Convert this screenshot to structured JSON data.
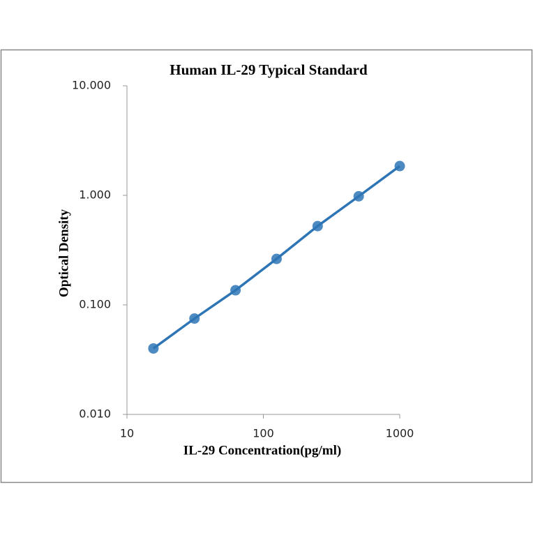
{
  "chart_data": {
    "type": "scatter",
    "title": "Human IL-29 Typical Standard",
    "x_label": "IL-29 Concentration(pg/ml)",
    "y_label": "Optical Density",
    "x": [
      15.625,
      31.25,
      62.5,
      125,
      250,
      500,
      1000
    ],
    "series": [
      {
        "values": [
          0.04,
          0.075,
          0.136,
          0.263,
          0.524,
          0.98,
          1.85
        ],
        "color": "#2e75b6"
      }
    ],
    "xlim": [
      10,
      1000
    ],
    "ylim": [
      0.01,
      10
    ],
    "xticks": [
      10,
      100,
      1000
    ],
    "yticks": [
      {
        "value": 10,
        "label": "10.000"
      },
      {
        "value": 1,
        "label": "1.000"
      },
      {
        "value": 0.1,
        "label": "0.100"
      },
      {
        "value": 0.01,
        "label": "0.010"
      }
    ],
    "x_log": true,
    "y_log": true,
    "grid": false,
    "legend": false
  }
}
